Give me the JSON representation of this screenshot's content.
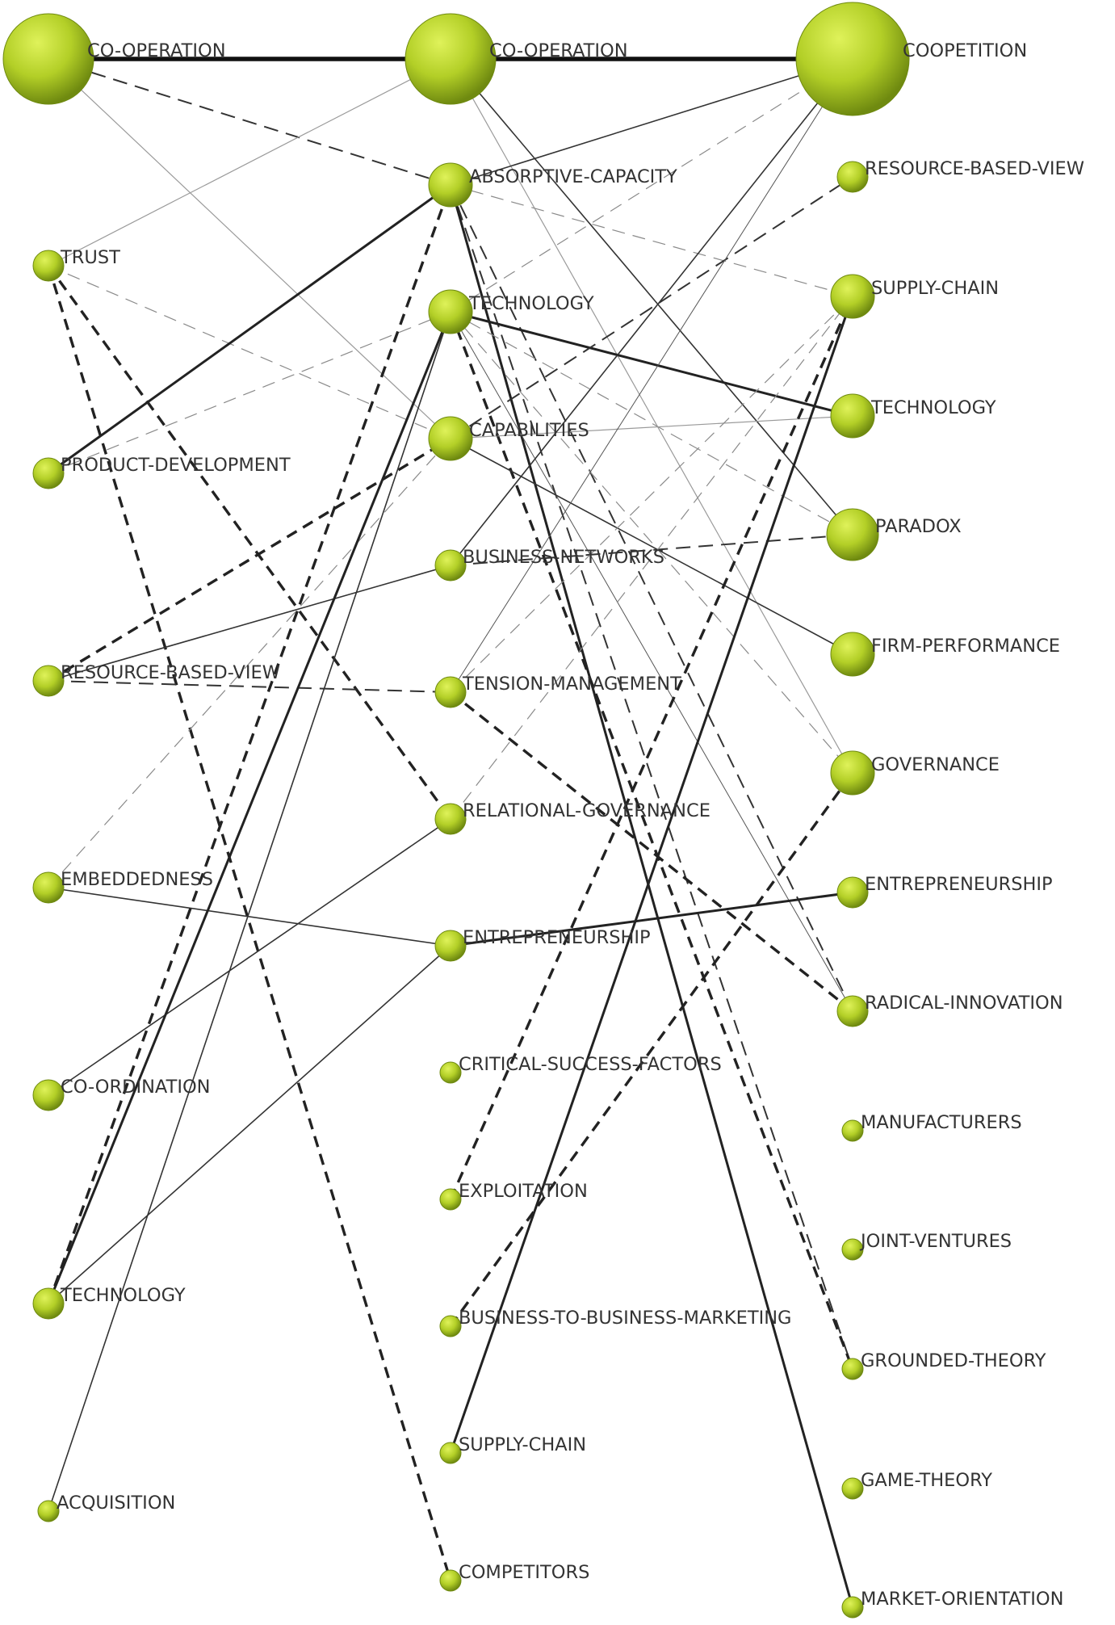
{
  "colors": {
    "node_light": "#d9ec4d",
    "node_mid": "#a6c21e",
    "node_dark": "#6f8a10",
    "edge": "#222222",
    "edge_light": "#888888",
    "label": "#333333"
  },
  "columns": [
    {
      "id": "c1",
      "nodes": [
        {
          "id": "c1-cooperation",
          "label": "CO-OPERATION",
          "size": "xl"
        },
        {
          "id": "c1-trust",
          "label": "TRUST",
          "size": "s"
        },
        {
          "id": "c1-product-development",
          "label": "PRODUCT-DEVELOPMENT",
          "size": "s"
        },
        {
          "id": "c1-resource-based-view",
          "label": "RESOURCE-BASED-VIEW",
          "size": "s"
        },
        {
          "id": "c1-embeddedness",
          "label": "EMBEDDEDNESS",
          "size": "s"
        },
        {
          "id": "c1-coordination",
          "label": "CO-ORDINATION",
          "size": "s"
        },
        {
          "id": "c1-technology",
          "label": "TECHNOLOGY",
          "size": "s"
        },
        {
          "id": "c1-acquisition",
          "label": "ACQUISITION",
          "size": "xs"
        }
      ]
    },
    {
      "id": "c2",
      "nodes": [
        {
          "id": "c2-cooperation",
          "label": "CO-OPERATION",
          "size": "xl"
        },
        {
          "id": "c2-absorptive-capacity",
          "label": "ABSORPTIVE-CAPACITY",
          "size": "m"
        },
        {
          "id": "c2-technology",
          "label": "TECHNOLOGY",
          "size": "m"
        },
        {
          "id": "c2-capabilities",
          "label": "CAPABILITIES",
          "size": "m"
        },
        {
          "id": "c2-business-networks",
          "label": "BUSINESS-NETWORKS",
          "size": "s"
        },
        {
          "id": "c2-tension-management",
          "label": "TENSION-MANAGEMENT",
          "size": "s"
        },
        {
          "id": "c2-relational-governance",
          "label": "RELATIONAL-GOVERNANCE",
          "size": "s"
        },
        {
          "id": "c2-entrepreneurship",
          "label": "ENTREPRENEURSHIP",
          "size": "s"
        },
        {
          "id": "c2-critical-success-factors",
          "label": "CRITICAL-SUCCESS-FACTORS",
          "size": "xs"
        },
        {
          "id": "c2-exploitation",
          "label": "EXPLOITATION",
          "size": "xs"
        },
        {
          "id": "c2-b2b-marketing",
          "label": "BUSINESS-TO-BUSINESS-MARKETING",
          "size": "xs"
        },
        {
          "id": "c2-supply-chain",
          "label": "SUPPLY-CHAIN",
          "size": "xs"
        },
        {
          "id": "c2-competitors",
          "label": "COMPETITORS",
          "size": "xs"
        }
      ]
    },
    {
      "id": "c3",
      "nodes": [
        {
          "id": "c3-coopetition",
          "label": "COOPETITION",
          "size": "xxl"
        },
        {
          "id": "c3-resource-based-view",
          "label": "RESOURCE-BASED-VIEW",
          "size": "s"
        },
        {
          "id": "c3-supply-chain",
          "label": "SUPPLY-CHAIN",
          "size": "m"
        },
        {
          "id": "c3-technology",
          "label": "TECHNOLOGY",
          "size": "m"
        },
        {
          "id": "c3-paradox",
          "label": "PARADOX",
          "size": "l"
        },
        {
          "id": "c3-firm-performance",
          "label": "FIRM-PERFORMANCE",
          "size": "m"
        },
        {
          "id": "c3-governance",
          "label": "GOVERNANCE",
          "size": "m"
        },
        {
          "id": "c3-entrepreneurship",
          "label": "ENTREPRENEURSHIP",
          "size": "s"
        },
        {
          "id": "c3-radical-innovation",
          "label": "RADICAL-INNOVATION",
          "size": "s"
        },
        {
          "id": "c3-manufacturers",
          "label": "MANUFACTURERS",
          "size": "xs"
        },
        {
          "id": "c3-joint-ventures",
          "label": "JOINT-VENTURES",
          "size": "xs"
        },
        {
          "id": "c3-grounded-theory",
          "label": "GROUNDED-THEORY",
          "size": "xs"
        },
        {
          "id": "c3-game-theory",
          "label": "GAME-THEORY",
          "size": "xs"
        },
        {
          "id": "c3-market-orientation",
          "label": "MARKET-ORIENTATION",
          "size": "xs"
        }
      ]
    }
  ],
  "edges": [
    {
      "from": "c1-cooperation",
      "to": "c2-cooperation",
      "style": "thick"
    },
    {
      "from": "c2-cooperation",
      "to": "c3-coopetition",
      "style": "thick"
    },
    {
      "from": "c1-cooperation",
      "to": "c2-absorptive-capacity",
      "style": "dash"
    },
    {
      "from": "c1-cooperation",
      "to": "c2-capabilities",
      "style": "thin-light"
    },
    {
      "from": "c1-trust",
      "to": "c2-cooperation",
      "style": "thin-light"
    },
    {
      "from": "c1-trust",
      "to": "c2-relational-governance",
      "style": "dash-bold"
    },
    {
      "from": "c1-trust",
      "to": "c2-competitors",
      "style": "dash-bold"
    },
    {
      "from": "c1-trust",
      "to": "c2-capabilities",
      "style": "dash-light"
    },
    {
      "from": "c1-product-development",
      "to": "c2-absorptive-capacity",
      "style": "solid-bold"
    },
    {
      "from": "c1-product-development",
      "to": "c2-technology",
      "style": "dash-light"
    },
    {
      "from": "c1-resource-based-view",
      "to": "c2-capabilities",
      "style": "dash-bold"
    },
    {
      "from": "c1-resource-based-view",
      "to": "c2-business-networks",
      "style": "solid"
    },
    {
      "from": "c1-resource-based-view",
      "to": "c2-tension-management",
      "style": "dash"
    },
    {
      "from": "c1-embeddedness",
      "to": "c2-entrepreneurship",
      "style": "solid"
    },
    {
      "from": "c1-embeddedness",
      "to": "c2-capabilities",
      "style": "dash-light"
    },
    {
      "from": "c1-coordination",
      "to": "c2-relational-governance",
      "style": "solid"
    },
    {
      "from": "c1-technology",
      "to": "c2-technology",
      "style": "solid-bold"
    },
    {
      "from": "c1-technology",
      "to": "c2-absorptive-capacity",
      "style": "dash-bold"
    },
    {
      "from": "c1-technology",
      "to": "c2-entrepreneurship",
      "style": "solid"
    },
    {
      "from": "c1-acquisition",
      "to": "c2-technology",
      "style": "solid"
    },
    {
      "from": "c2-cooperation",
      "to": "c3-paradox",
      "style": "solid"
    },
    {
      "from": "c2-cooperation",
      "to": "c3-governance",
      "style": "thin-light"
    },
    {
      "from": "c2-absorptive-capacity",
      "to": "c3-coopetition",
      "style": "solid"
    },
    {
      "from": "c2-absorptive-capacity",
      "to": "c3-supply-chain",
      "style": "dash-light"
    },
    {
      "from": "c2-absorptive-capacity",
      "to": "c3-grounded-theory",
      "style": "dash"
    },
    {
      "from": "c2-absorptive-capacity",
      "to": "c3-market-orientation",
      "style": "solid-bold"
    },
    {
      "from": "c2-absorptive-capacity",
      "to": "c3-radical-innovation",
      "style": "dash"
    },
    {
      "from": "c2-technology",
      "to": "c3-technology",
      "style": "solid-bold"
    },
    {
      "from": "c2-technology",
      "to": "c3-coopetition",
      "style": "dash-light"
    },
    {
      "from": "c2-technology",
      "to": "c3-paradox",
      "style": "dash-light"
    },
    {
      "from": "c2-technology",
      "to": "c3-governance",
      "style": "dash-light"
    },
    {
      "from": "c2-technology",
      "to": "c3-radical-innovation",
      "style": "thin"
    },
    {
      "from": "c2-technology",
      "to": "c3-grounded-theory",
      "style": "dash-bold"
    },
    {
      "from": "c2-capabilities",
      "to": "c3-technology",
      "style": "thin-light"
    },
    {
      "from": "c2-capabilities",
      "to": "c3-firm-performance",
      "style": "solid"
    },
    {
      "from": "c2-capabilities",
      "to": "c3-resource-based-view",
      "style": "dash"
    },
    {
      "from": "c2-business-networks",
      "to": "c3-paradox",
      "style": "dash"
    },
    {
      "from": "c2-business-networks",
      "to": "c3-coopetition",
      "style": "solid"
    },
    {
      "from": "c2-tension-management",
      "to": "c3-radical-innovation",
      "style": "dash-bold"
    },
    {
      "from": "c2-tension-management",
      "to": "c3-supply-chain",
      "style": "dash-light"
    },
    {
      "from": "c2-tension-management",
      "to": "c3-coopetition",
      "style": "thin"
    },
    {
      "from": "c2-relational-governance",
      "to": "c3-supply-chain",
      "style": "dash-light"
    },
    {
      "from": "c2-entrepreneurship",
      "to": "c3-entrepreneurship",
      "style": "solid-bold"
    },
    {
      "from": "c2-exploitation",
      "to": "c3-supply-chain",
      "style": "dash-bold"
    },
    {
      "from": "c2-b2b-marketing",
      "to": "c3-governance",
      "style": "dash-bold"
    },
    {
      "from": "c2-supply-chain",
      "to": "c3-supply-chain",
      "style": "solid-bold"
    }
  ]
}
